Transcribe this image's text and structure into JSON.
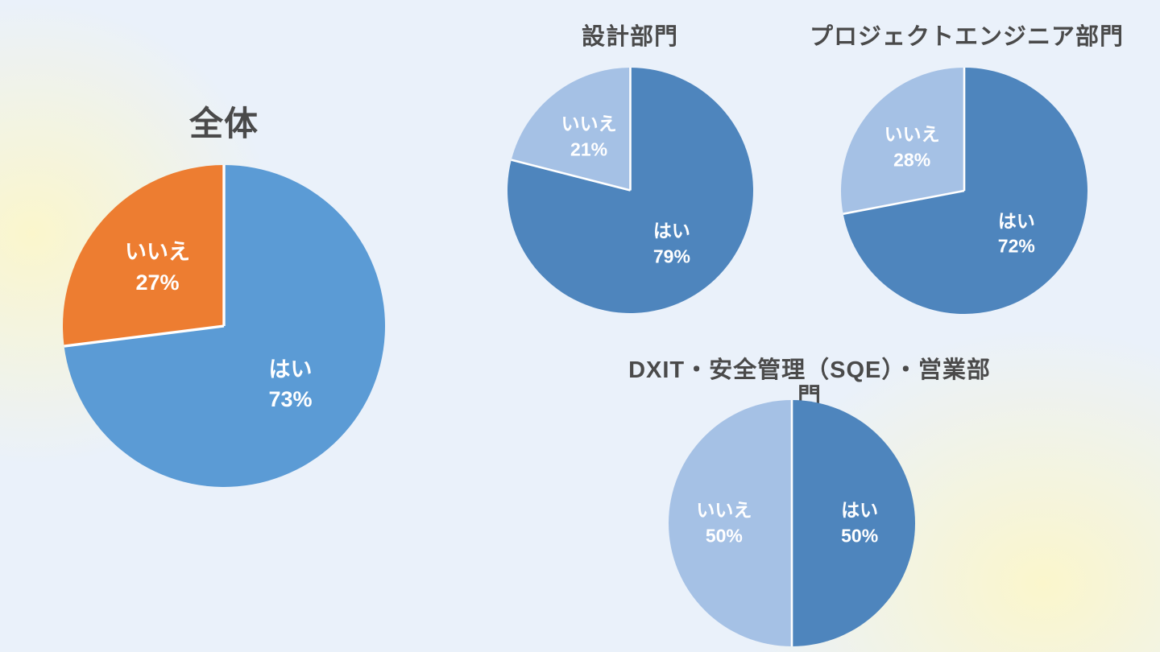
{
  "page": {
    "background": {
      "base": "#EAF1FA",
      "glow": "#FBF6CC"
    },
    "title_color": "#4A4A4A",
    "data_label_color": "#FFFFFF",
    "separator_color": "#FFFFFF"
  },
  "chart_data": [
    {
      "type": "pie",
      "title": "全体",
      "start_angle_deg": 0,
      "direction": "clockwise",
      "legend": "none",
      "data_labels": "category name and percent inside slices",
      "slices": [
        {
          "label": "はい",
          "value": 73,
          "percent_text": "73%",
          "color": "#5B9BD5"
        },
        {
          "label": "いいえ",
          "value": 27,
          "percent_text": "27%",
          "color": "#ED7D31"
        }
      ]
    },
    {
      "type": "pie",
      "title": "設計部門",
      "start_angle_deg": 0,
      "direction": "clockwise",
      "legend": "none",
      "data_labels": "category name and percent inside slices",
      "slices": [
        {
          "label": "はい",
          "value": 79,
          "percent_text": "79%",
          "color": "#4E85BD"
        },
        {
          "label": "いいえ",
          "value": 21,
          "percent_text": "21%",
          "color": "#A5C1E5"
        }
      ]
    },
    {
      "type": "pie",
      "title": "プロジェクトエンジニア部門",
      "start_angle_deg": 0,
      "direction": "clockwise",
      "legend": "none",
      "data_labels": "category name and percent inside slices",
      "slices": [
        {
          "label": "はい",
          "value": 72,
          "percent_text": "72%",
          "color": "#4E85BD"
        },
        {
          "label": "いいえ",
          "value": 28,
          "percent_text": "28%",
          "color": "#A5C1E5"
        }
      ]
    },
    {
      "type": "pie",
      "title": "DXIT・安全管理（SQE）・営業部門",
      "start_angle_deg": 0,
      "direction": "clockwise",
      "legend": "none",
      "data_labels": "category name and percent inside slices",
      "slices": [
        {
          "label": "はい",
          "value": 50,
          "percent_text": "50%",
          "color": "#4E85BD"
        },
        {
          "label": "いいえ",
          "value": 50,
          "percent_text": "50%",
          "color": "#A5C1E5"
        }
      ]
    }
  ]
}
